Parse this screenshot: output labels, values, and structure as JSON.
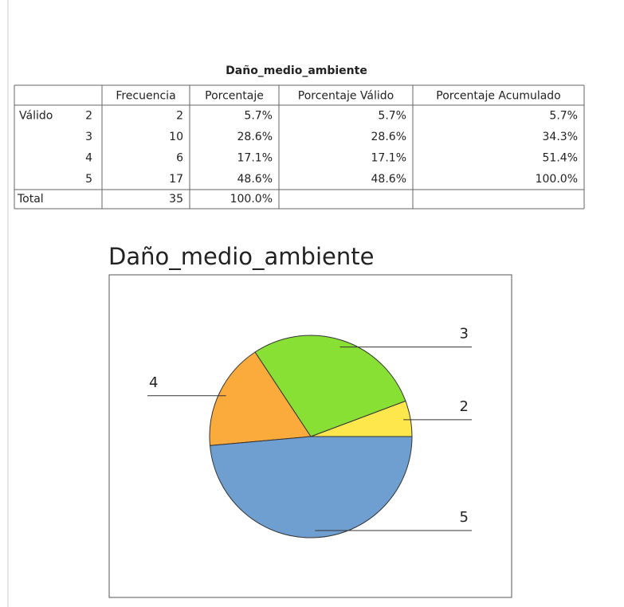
{
  "table": {
    "title": "Daño_medio_ambiente",
    "columns": [
      "Frecuencia",
      "Porcentaje",
      "Porcentaje Válido",
      "Porcentaje Acumulado"
    ],
    "group": "Válido",
    "rows": [
      {
        "label": "2",
        "cells": [
          "2",
          "5.7%",
          "5.7%",
          "5.7%"
        ]
      },
      {
        "label": "3",
        "cells": [
          "10",
          "28.6%",
          "28.6%",
          "34.3%"
        ]
      },
      {
        "label": "4",
        "cells": [
          "6",
          "17.1%",
          "17.1%",
          "51.4%"
        ]
      },
      {
        "label": "5",
        "cells": [
          "17",
          "48.6%",
          "48.6%",
          "100.0%"
        ]
      }
    ],
    "total": {
      "label": "Total",
      "cells": [
        "35",
        "100.0%"
      ]
    }
  },
  "chart_data": {
    "type": "pie",
    "title": "Daño_medio_ambiente",
    "categories": [
      "2",
      "3",
      "4",
      "5"
    ],
    "values": [
      2,
      10,
      6,
      17
    ],
    "colors": [
      "#fde74c",
      "#88e034",
      "#fbab3c",
      "#6f9fd0"
    ]
  }
}
